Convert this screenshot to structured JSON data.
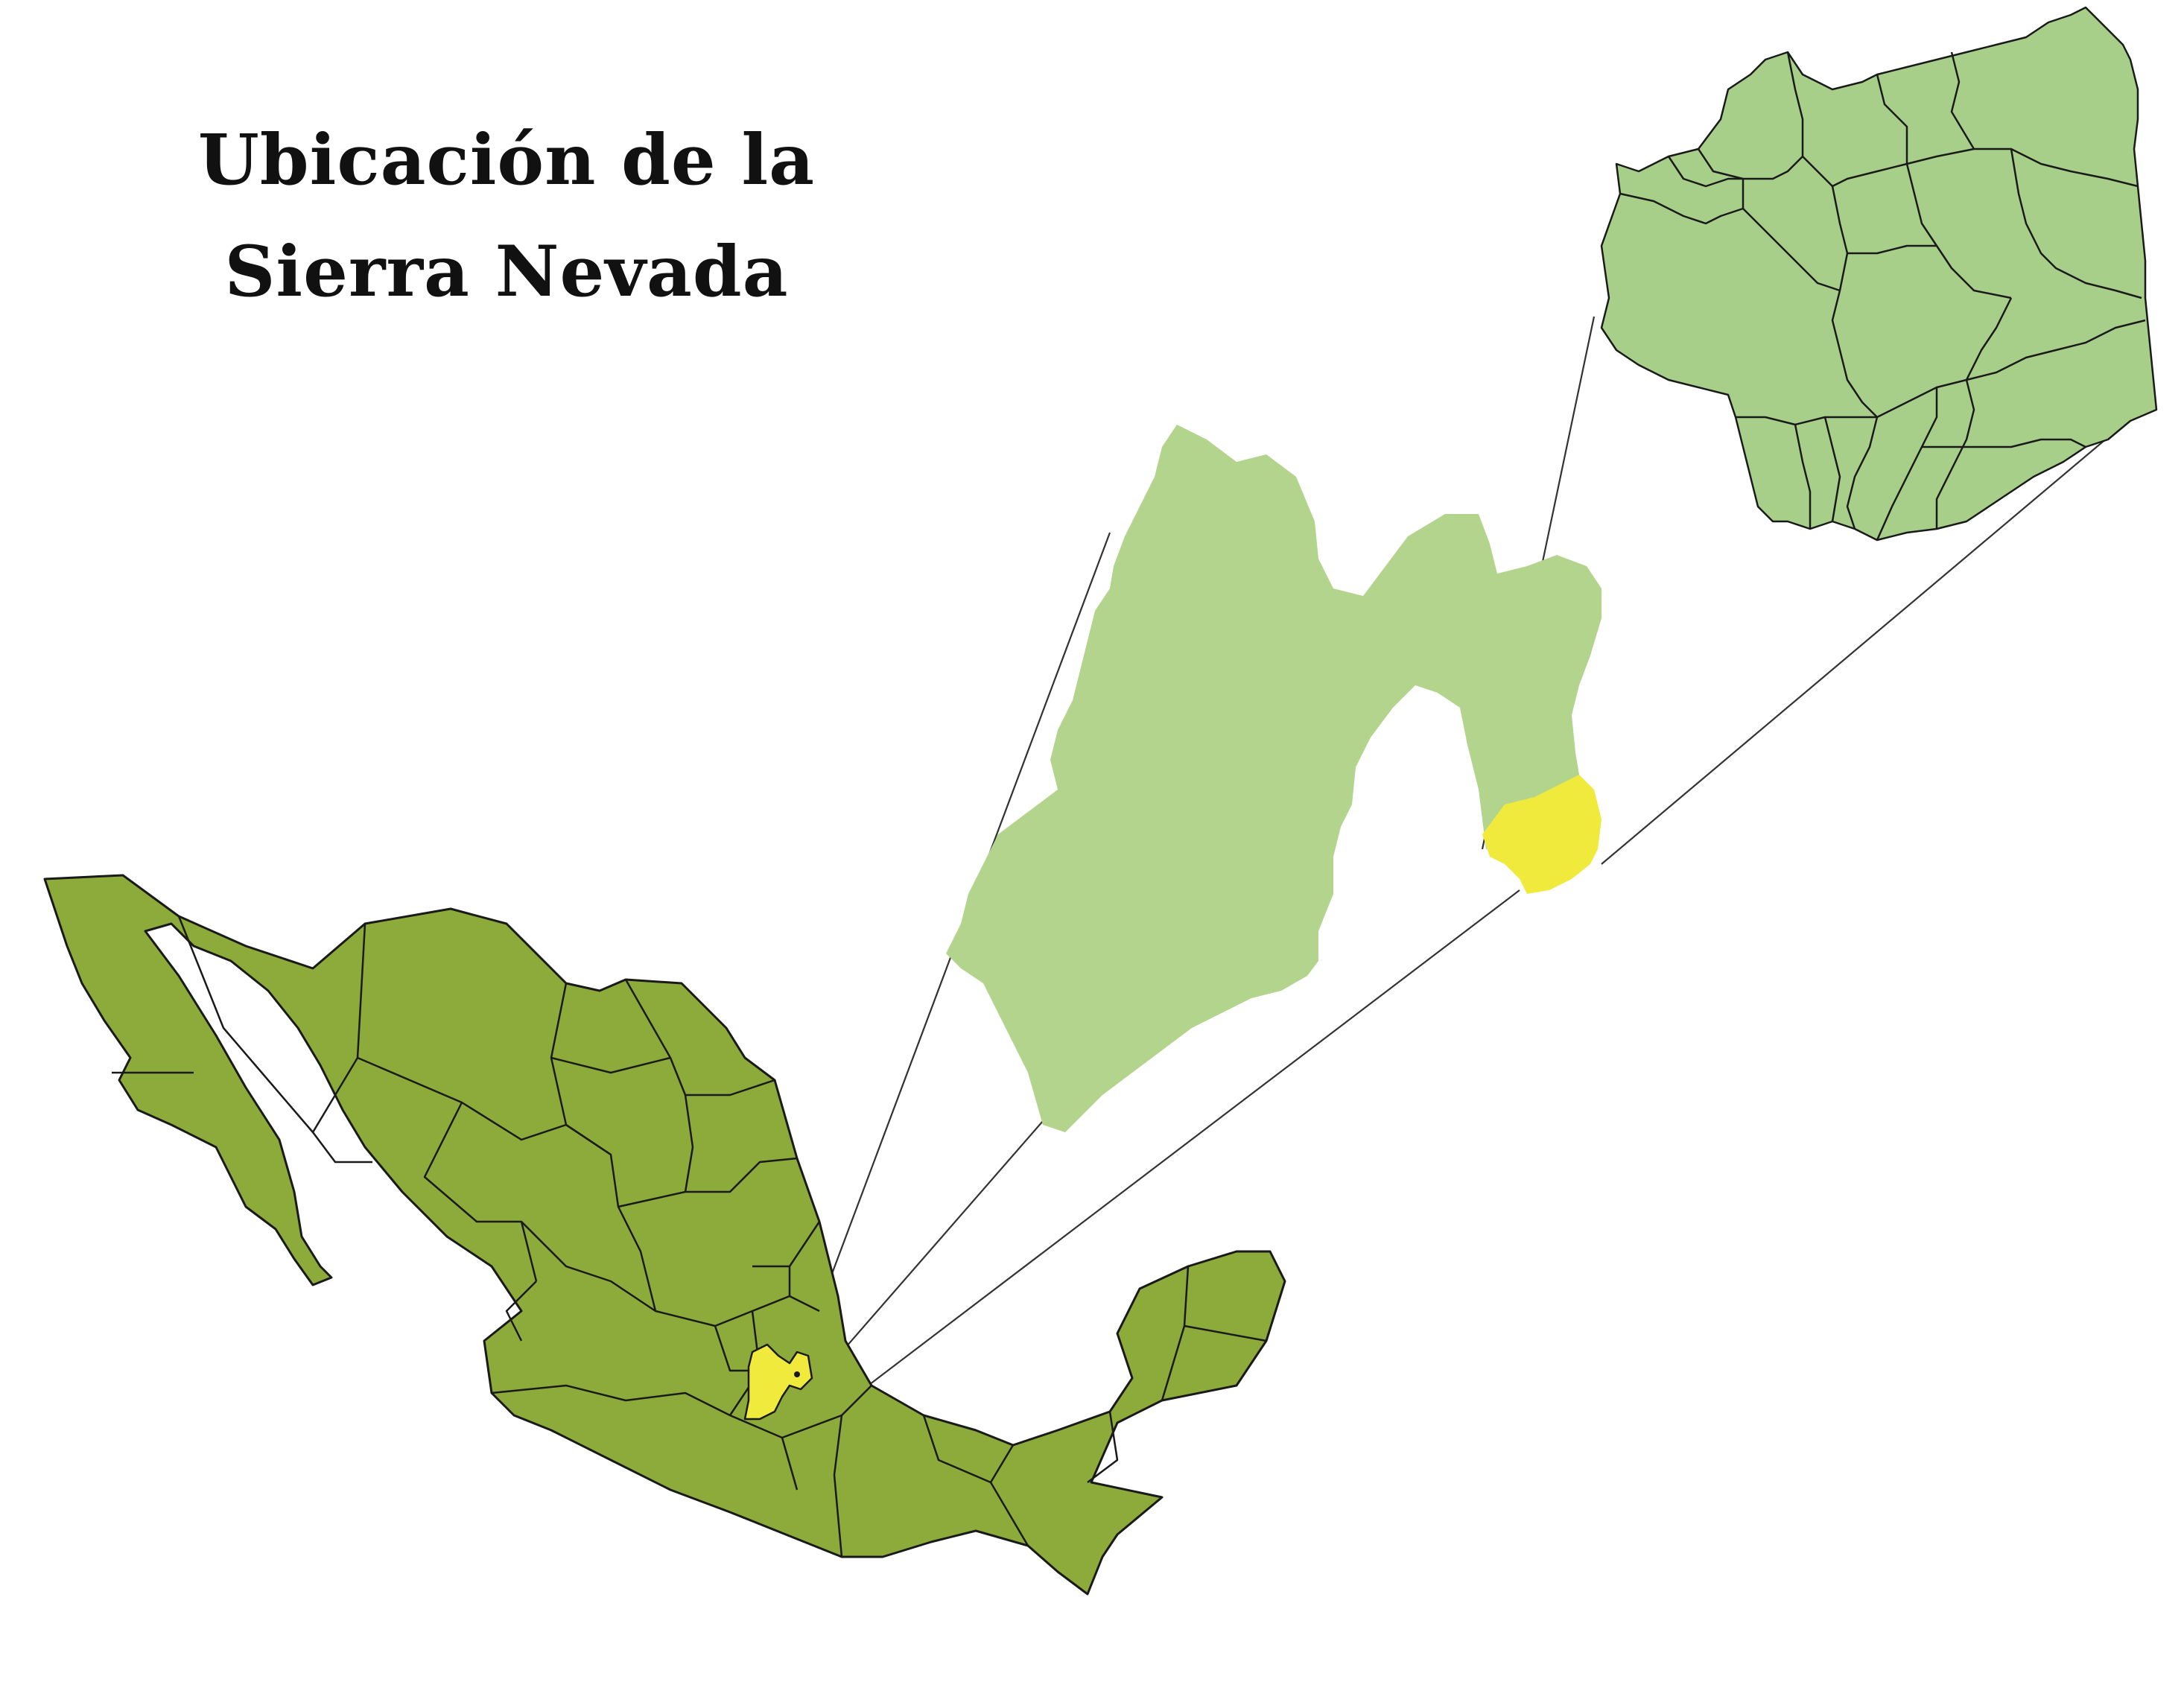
{
  "title": {
    "line1": "Ubicación de la",
    "line2": "Sierra Nevada"
  },
  "colors": {
    "country_fill": "#8cab3a",
    "state_fill": "#b3d48c",
    "municipality_fill": "#a8cf8a",
    "highlight_fill": "#f0ea3c",
    "border": "#1a1a1a",
    "connector": "#333333",
    "background": "#ffffff"
  },
  "layers": [
    {
      "name": "mexico-country-map",
      "label": ""
    },
    {
      "name": "state-inset-map",
      "label": ""
    },
    {
      "name": "municipalities-inset-map",
      "label": ""
    }
  ]
}
